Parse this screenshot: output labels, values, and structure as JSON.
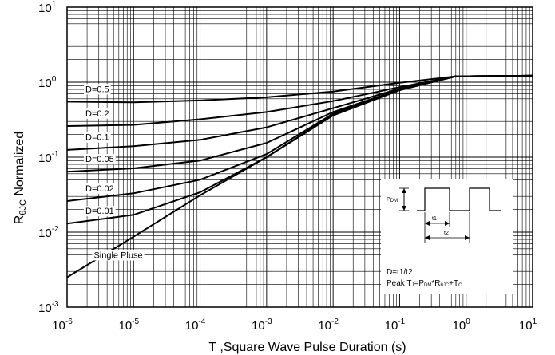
{
  "chart_data": {
    "type": "line",
    "xlabel": "T ,Square Wave Pulse Duration (s)",
    "ylabel": {
      "main": "R",
      "sub": "θJC",
      "rest": " Normalized"
    },
    "x_scale": "log",
    "y_scale": "log",
    "xlim": [
      1e-06,
      10
    ],
    "ylim": [
      0.001,
      10
    ],
    "grid": true,
    "x_ticks": [
      {
        "base": "10",
        "exp": "-6"
      },
      {
        "base": "10",
        "exp": "-5"
      },
      {
        "base": "10",
        "exp": "-4"
      },
      {
        "base": "10",
        "exp": "-3"
      },
      {
        "base": "10",
        "exp": "-2"
      },
      {
        "base": "10",
        "exp": "-1"
      },
      {
        "base": "10",
        "exp": "0"
      },
      {
        "base": "10",
        "exp": "1"
      }
    ],
    "y_ticks": [
      {
        "base": "10",
        "exp": "1"
      },
      {
        "base": "10",
        "exp": "0"
      },
      {
        "base": "10",
        "exp": "-1"
      },
      {
        "base": "10",
        "exp": "-2"
      },
      {
        "base": "10",
        "exp": "-3"
      }
    ],
    "series": [
      {
        "name": "D=0.5",
        "x": [
          1e-06,
          1e-05,
          0.0001,
          0.001,
          0.01,
          0.1,
          0.7,
          10
        ],
        "y": [
          0.55,
          0.54,
          0.57,
          0.63,
          0.75,
          0.98,
          1.2,
          1.22
        ]
      },
      {
        "name": "D=0.2",
        "x": [
          1e-06,
          1e-05,
          0.0001,
          0.001,
          0.01,
          0.1,
          0.7,
          10
        ],
        "y": [
          0.26,
          0.27,
          0.32,
          0.4,
          0.56,
          0.86,
          1.2,
          1.22
        ]
      },
      {
        "name": "D=0.1",
        "x": [
          1e-06,
          1e-05,
          0.0001,
          0.001,
          0.01,
          0.1,
          0.7,
          10
        ],
        "y": [
          0.125,
          0.14,
          0.17,
          0.25,
          0.45,
          0.82,
          1.2,
          1.22
        ]
      },
      {
        "name": "D=0.05",
        "x": [
          1e-06,
          1e-05,
          0.0001,
          0.001,
          0.01,
          0.1,
          0.7,
          10
        ],
        "y": [
          0.064,
          0.071,
          0.09,
          0.155,
          0.4,
          0.8,
          1.2,
          1.22
        ]
      },
      {
        "name": "D=0.02",
        "x": [
          1e-06,
          1e-05,
          0.0001,
          0.001,
          0.01,
          0.1,
          0.7,
          10
        ],
        "y": [
          0.026,
          0.033,
          0.05,
          0.11,
          0.38,
          0.79,
          1.2,
          1.22
        ]
      },
      {
        "name": "D=0.01",
        "x": [
          1e-06,
          1e-05,
          0.0001,
          0.001,
          0.01,
          0.1,
          0.7,
          10
        ],
        "y": [
          0.013,
          0.017,
          0.034,
          0.1,
          0.37,
          0.79,
          1.2,
          1.22
        ]
      },
      {
        "name": "Single Pluse",
        "x": [
          1e-06,
          1e-05,
          0.0001,
          0.001,
          0.01,
          0.1,
          0.7,
          10
        ],
        "y": [
          0.0025,
          0.0087,
          0.031,
          0.1,
          0.36,
          0.78,
          1.2,
          1.22
        ]
      }
    ],
    "inset": {
      "pdm": {
        "base": "P",
        "sub": "DM"
      },
      "t1": "t1",
      "t2": "t2",
      "formula1": "D=t1/t2",
      "formula2": {
        "a": "Peak T",
        "a_sub": "J",
        "b": "=P",
        "b_sub": "DM",
        "c": "*R",
        "c_sub": "θJC",
        "d": "+T",
        "d_sub": "C"
      }
    }
  }
}
